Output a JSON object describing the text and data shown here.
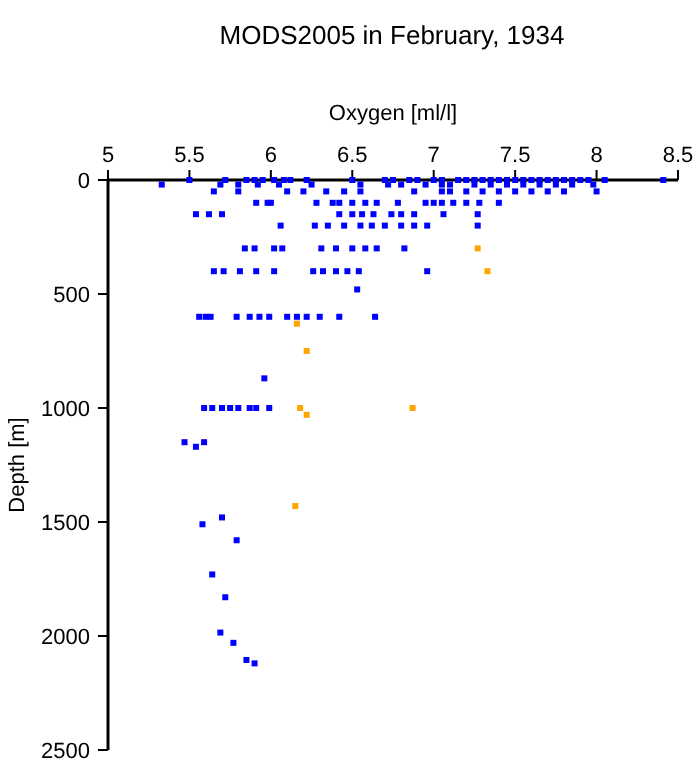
{
  "chart_data": {
    "type": "scatter",
    "title": "MODS2005 in February, 1934",
    "xlabel": "Oxygen [ml/l]",
    "ylabel": "Depth [m]",
    "xlim": [
      5,
      8.5
    ],
    "xticks": [
      5,
      5.5,
      6,
      6.5,
      7,
      7.5,
      8,
      8.5
    ],
    "ylim": [
      2500,
      0
    ],
    "yticks": [
      0,
      500,
      1000,
      1500,
      2000,
      2500
    ],
    "marker": "square",
    "grid": false,
    "series": [
      {
        "color": "#0000ff",
        "x": [
          5.5,
          5.72,
          5.85,
          5.9,
          5.95,
          6.02,
          6.08,
          6.12,
          6.22,
          6.5,
          6.7,
          6.75,
          6.85,
          6.9,
          7.0,
          7.05,
          7.15,
          7.2,
          7.25,
          7.3,
          7.35,
          7.4,
          7.45,
          7.5,
          7.55,
          7.6,
          7.65,
          7.7,
          7.75,
          7.8,
          7.85,
          7.9,
          7.95,
          8.05,
          8.41,
          5.33,
          5.69,
          5.8,
          5.92,
          6.05,
          6.25,
          6.55,
          6.72,
          6.8,
          6.95,
          7.05,
          7.1,
          7.25,
          7.35,
          7.45,
          7.55,
          7.65,
          7.75,
          7.85,
          7.98,
          5.65,
          5.8,
          6.1,
          6.2,
          6.34,
          6.45,
          6.55,
          6.88,
          7.05,
          7.1,
          7.2,
          7.3,
          7.4,
          7.5,
          7.6,
          7.7,
          7.8,
          8.0,
          5.91,
          5.98,
          6.0,
          6.28,
          6.38,
          6.42,
          6.5,
          6.58,
          6.65,
          6.78,
          6.95,
          7.0,
          7.05,
          7.12,
          7.2,
          7.28,
          7.4,
          5.54,
          5.62,
          5.7,
          6.42,
          6.5,
          6.56,
          6.63,
          6.74,
          6.8,
          6.88,
          7.06,
          7.27,
          6.06,
          6.27,
          6.35,
          6.45,
          6.55,
          6.62,
          6.7,
          6.8,
          6.88,
          6.96,
          7.27,
          5.84,
          5.9,
          6.02,
          6.07,
          6.31,
          6.4,
          6.5,
          6.58,
          6.65,
          6.82,
          5.65,
          5.71,
          5.81,
          5.91,
          6.02,
          6.26,
          6.32,
          6.4,
          6.47,
          6.54,
          6.96,
          6.53,
          5.56,
          5.6,
          5.63,
          5.79,
          5.87,
          5.93,
          5.99,
          6.1,
          6.16,
          6.22,
          6.3,
          6.42,
          6.64,
          5.96,
          5.59,
          5.64,
          5.7,
          5.75,
          5.8,
          5.87,
          5.91,
          5.99,
          5.47,
          5.54,
          5.59,
          5.58,
          5.7,
          5.79,
          5.64,
          5.72,
          5.69,
          5.77,
          5.85,
          5.9
        ],
        "values": [
          0,
          0,
          0,
          0,
          0,
          0,
          0,
          0,
          0,
          0,
          0,
          0,
          0,
          0,
          0,
          0,
          0,
          0,
          0,
          0,
          0,
          0,
          0,
          0,
          0,
          0,
          0,
          0,
          0,
          0,
          0,
          0,
          0,
          0,
          0,
          20,
          20,
          20,
          20,
          20,
          20,
          20,
          20,
          20,
          20,
          20,
          20,
          20,
          20,
          20,
          20,
          20,
          20,
          20,
          20,
          50,
          50,
          50,
          50,
          50,
          50,
          50,
          50,
          50,
          50,
          50,
          50,
          50,
          50,
          50,
          50,
          50,
          50,
          100,
          100,
          100,
          100,
          100,
          100,
          100,
          100,
          100,
          100,
          100,
          100,
          100,
          100,
          100,
          100,
          100,
          150,
          150,
          150,
          150,
          150,
          150,
          150,
          150,
          150,
          150,
          150,
          150,
          200,
          200,
          200,
          200,
          200,
          200,
          200,
          200,
          200,
          200,
          200,
          300,
          300,
          300,
          300,
          300,
          300,
          300,
          300,
          300,
          300,
          400,
          400,
          400,
          400,
          400,
          400,
          400,
          400,
          400,
          400,
          400,
          480,
          600,
          600,
          600,
          600,
          600,
          600,
          600,
          600,
          600,
          600,
          600,
          600,
          600,
          870,
          1000,
          1000,
          1000,
          1000,
          1000,
          1000,
          1000,
          1000,
          1150,
          1170,
          1150,
          1510,
          1480,
          1580,
          1730,
          1830,
          1985,
          2030,
          2105,
          2120
        ]
      },
      {
        "color": "#ffa500",
        "x": [
          7.27,
          7.33,
          6.16,
          6.22,
          6.18,
          6.22,
          6.87,
          6.15
        ],
        "values": [
          300,
          400,
          630,
          750,
          1000,
          1030,
          1000,
          1430
        ]
      }
    ]
  }
}
